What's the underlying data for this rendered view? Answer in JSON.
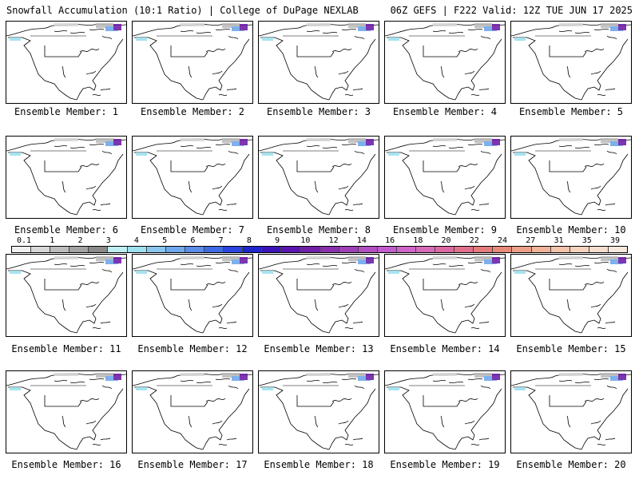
{
  "header": {
    "left": "Snowfall Accumulation (10:1 Ratio) | College of DuPage NEXLAB",
    "right": "06Z GEFS | F222 Valid: 12Z TUE JUN 17 2025"
  },
  "members": [
    "Ensemble Member: 1",
    "Ensemble Member: 2",
    "Ensemble Member: 3",
    "Ensemble Member: 4",
    "Ensemble Member: 5",
    "Ensemble Member: 6",
    "Ensemble Member: 7",
    "Ensemble Member: 8",
    "Ensemble Member: 9",
    "Ensemble Member: 10",
    "Ensemble Member: 11",
    "Ensemble Member: 12",
    "Ensemble Member: 13",
    "Ensemble Member: 14",
    "Ensemble Member: 15",
    "Ensemble Member: 16",
    "Ensemble Member: 17",
    "Ensemble Member: 18",
    "Ensemble Member: 19",
    "Ensemble Member: 20"
  ],
  "colorbar": {
    "ticks": [
      "0.1",
      "1",
      "2",
      "3",
      "4",
      "5",
      "6",
      "7",
      "8",
      "9",
      "10",
      "12",
      "14",
      "16",
      "18",
      "20",
      "22",
      "24",
      "27",
      "31",
      "35",
      "39"
    ],
    "colors": [
      "#f0f0f0",
      "#d8d8d8",
      "#bdbdbd",
      "#a3a3a3",
      "#8a8a8a",
      "#bfeff2",
      "#9ee0ee",
      "#8ac6f0",
      "#6fa8ec",
      "#5a8ce8",
      "#3f6ae6",
      "#2a45e0",
      "#1f26cc",
      "#3a14b8",
      "#5a14b0",
      "#7020a8",
      "#8a2fae",
      "#a040b8",
      "#b24fc2",
      "#c25ccc",
      "#d064c8",
      "#d86ab8",
      "#dc6aa2",
      "#e0708c",
      "#e47c7c",
      "#e88a78",
      "#eca088",
      "#f0b49a",
      "#f2c4ac",
      "#f4d2bc",
      "#f6dece",
      "#f8e8dc"
    ]
  }
}
